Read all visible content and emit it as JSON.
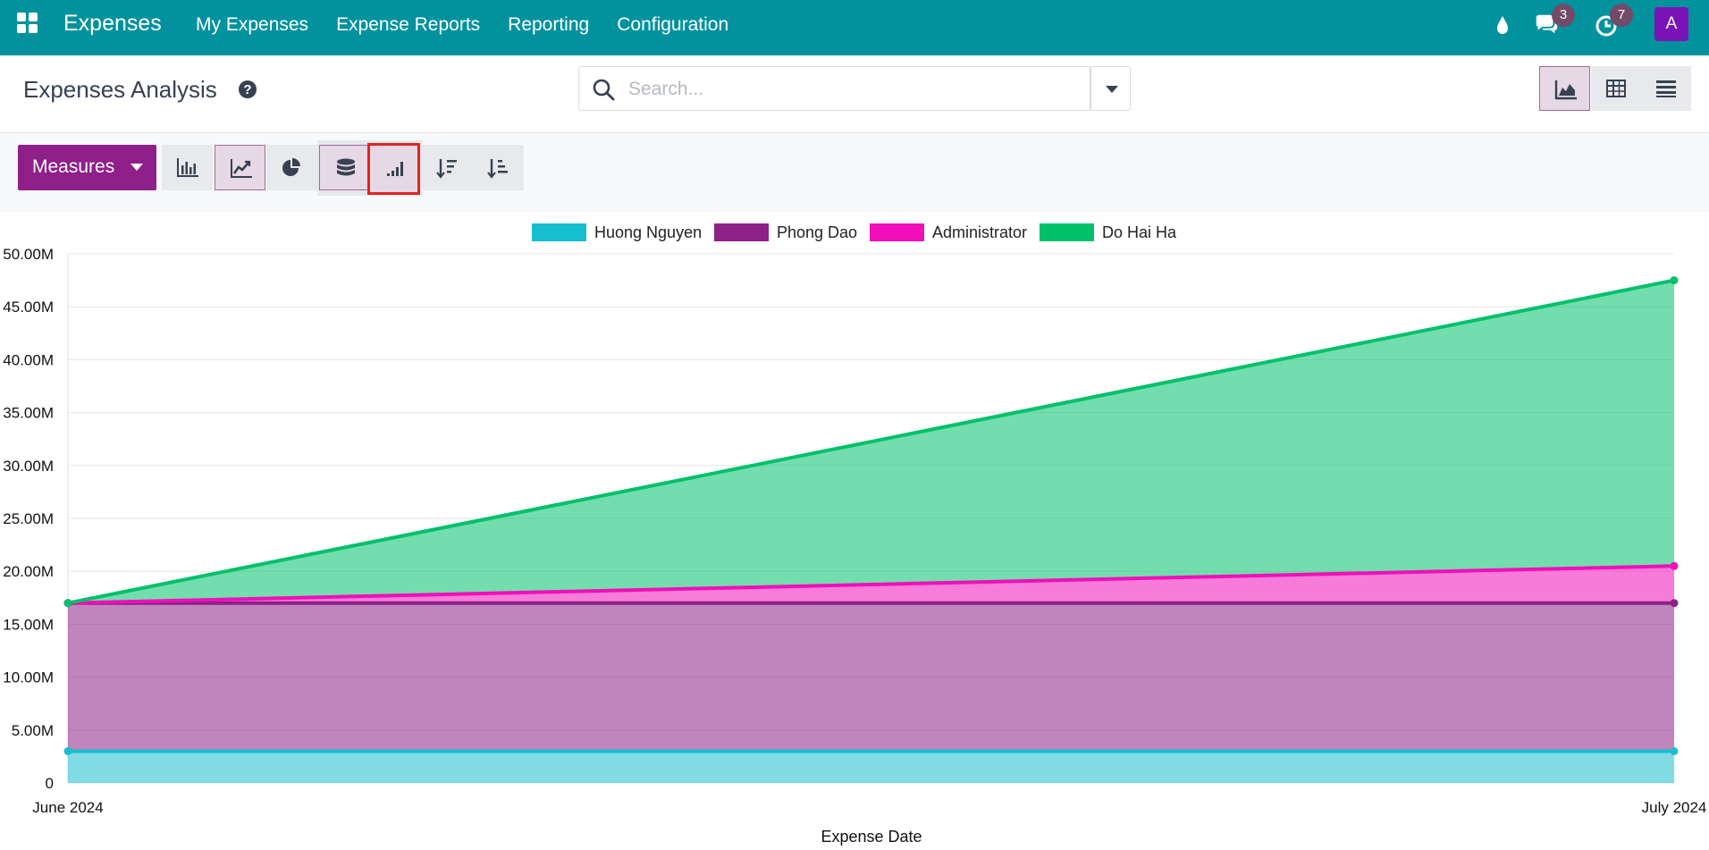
{
  "navbar": {
    "brand": "Expenses",
    "menu": [
      "My Expenses",
      "Expense Reports",
      "Reporting",
      "Configuration"
    ],
    "messages_count": "3",
    "activities_count": "7",
    "avatar_initial": "A",
    "color": "#01929e"
  },
  "control_panel": {
    "title": "Expenses Analysis",
    "search_placeholder": "Search...",
    "measures_label": "Measures",
    "views": [
      "graph-view-icon",
      "pivot-view-icon",
      "list-view-icon"
    ],
    "active_view": "graph"
  },
  "toolbar": {
    "buttons": [
      "bar-chart-icon",
      "line-chart-icon",
      "pie-chart-icon",
      "stacked-icon",
      "cumulative-icon",
      "sort-descending-icon",
      "sort-ascending-icon"
    ],
    "active": [
      "line-chart-icon",
      "stacked-icon",
      "cumulative-icon"
    ],
    "accent": "#8f1f89"
  },
  "chart_data": {
    "type": "area",
    "stacked": true,
    "x": [
      "June 2024",
      "July 2024"
    ],
    "xlabel": "Expense Date",
    "ylabel": "",
    "ylim": [
      0,
      50000000
    ],
    "yticks": [
      "0",
      "5.00M",
      "10.00M",
      "15.00M",
      "20.00M",
      "25.00M",
      "30.00M",
      "35.00M",
      "40.00M",
      "45.00M",
      "50.00M"
    ],
    "grid": true,
    "legend_position": "top",
    "series": [
      {
        "name": "Huong Nguyen",
        "color": "#17becf",
        "values": [
          3000000,
          3000000
        ]
      },
      {
        "name": "Phong Dao",
        "color": "#8c2187",
        "values": [
          14000000,
          14000000
        ]
      },
      {
        "name": "Administrator",
        "color": "#f00fba",
        "values": [
          0,
          3500000
        ]
      },
      {
        "name": "Do Hai Ha",
        "color": "#00c16a",
        "values": [
          0,
          27000000
        ]
      }
    ]
  }
}
